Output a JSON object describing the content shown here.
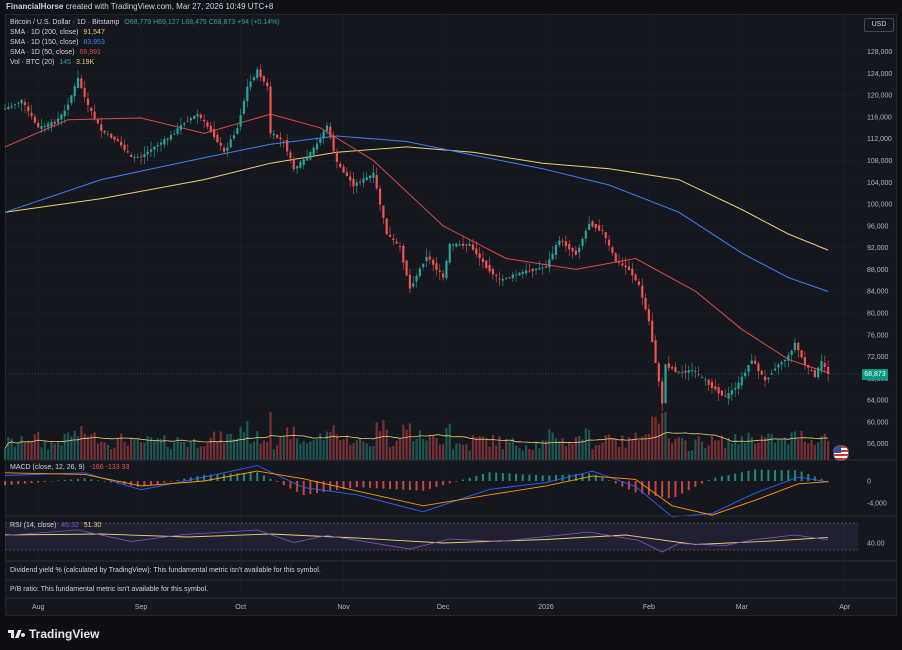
{
  "header": {
    "author": "FinancialHorse",
    "credit_text": "created with TradingView.com, Mar 27, 2026 10:49 UTC+8"
  },
  "legend": {
    "symbol": "Bitcoin / U.S. Dollar · 1D · Bitstamp",
    "ohlc": "O68,779  H69,127  L68,475  C68,873 +94 (+0.14%)",
    "sma200_label": "SMA · 1D (200, close)",
    "sma200_value": "91,547",
    "sma150_label": "SMA · 1D (150, close)",
    "sma150_value": "83,953",
    "sma50_label": "SMA · 1D (50, close)",
    "sma50_value": "68,991",
    "vol_label": "Vol · BTC (20)",
    "vol_value1": "145",
    "vol_value2": "3.19K",
    "macd_label": "MACD (close, 12, 26, 9)",
    "macd_values": "-166  -133  33",
    "rsi_label": "RSI (14, close)",
    "rsi_value1": "46.32",
    "rsi_value2": "51.30"
  },
  "currency_button": "USD",
  "last_price": "68,873",
  "fundamentals": {
    "dividend": "Dividend yield % (calculated by TradingView): This fundamental metric isn't available for this symbol.",
    "pb": "P/B ratio: This fundamental metric isn't available for this symbol."
  },
  "brand": "TradingView",
  "colors": {
    "up": "#26a69a",
    "down": "#ef5350",
    "sma200": "#e9d16f",
    "sma150": "#3f7ef5",
    "sma50": "#e0454b",
    "macd_line": "#2962ff",
    "signal_line": "#ff9800",
    "rsi_line": "#7e57c2",
    "rsi_ma": "#e9d16f",
    "price_tag": "#089981"
  },
  "chart_data": {
    "type": "candlestick",
    "price_axis": {
      "ylim": [
        53000,
        130500
      ],
      "ticks": [
        "128,000",
        "124,000",
        "120,000",
        "116,000",
        "112,000",
        "108,000",
        "104,000",
        "100,000",
        "96,000",
        "92,000",
        "88,000",
        "84,000",
        "80,000",
        "76,000",
        "72,000",
        "68,000",
        "64,000",
        "60,000",
        "56,000"
      ]
    },
    "time_axis": {
      "labels": [
        "Aug",
        "Sep",
        "Oct",
        "Nov",
        "Dec",
        "2026",
        "Feb",
        "Mar",
        "Apr"
      ],
      "label_dates": [
        "2025-08-01",
        "2025-09-01",
        "2025-10-01",
        "2025-11-01",
        "2025-12-01",
        "2026-01-01",
        "2026-02-01",
        "2026-03-01",
        "2026-04-01"
      ],
      "range": [
        "2025-07-22",
        "2026-04-05"
      ]
    },
    "price_path": [
      [
        "2025-07-22",
        117500
      ],
      [
        "2025-07-27",
        119000
      ],
      [
        "2025-08-01",
        114000
      ],
      [
        "2025-08-06",
        115000
      ],
      [
        "2025-08-09",
        117000
      ],
      [
        "2025-08-13",
        123000
      ],
      [
        "2025-08-16",
        118000
      ],
      [
        "2025-08-20",
        113500
      ],
      [
        "2025-08-25",
        111500
      ],
      [
        "2025-08-29",
        108500
      ],
      [
        "2025-09-01",
        108700
      ],
      [
        "2025-09-05",
        110500
      ],
      [
        "2025-09-10",
        112500
      ],
      [
        "2025-09-14",
        115000
      ],
      [
        "2025-09-18",
        116500
      ],
      [
        "2025-09-22",
        113500
      ],
      [
        "2025-09-26",
        109500
      ],
      [
        "2025-09-30",
        114000
      ],
      [
        "2025-10-03",
        121500
      ],
      [
        "2025-10-06",
        124500
      ],
      [
        "2025-10-09",
        121500
      ],
      [
        "2025-10-10",
        113000
      ],
      [
        "2025-10-14",
        111500
      ],
      [
        "2025-10-17",
        106500
      ],
      [
        "2025-10-21",
        108500
      ],
      [
        "2025-10-24",
        111000
      ],
      [
        "2025-10-27",
        114500
      ],
      [
        "2025-10-30",
        107500
      ],
      [
        "2025-11-04",
        103500
      ],
      [
        "2025-11-10",
        105500
      ],
      [
        "2025-11-14",
        94500
      ],
      [
        "2025-11-18",
        92000
      ],
      [
        "2025-11-21",
        84500
      ],
      [
        "2025-11-26",
        90500
      ],
      [
        "2025-12-01",
        86500
      ],
      [
        "2025-12-03",
        92500
      ],
      [
        "2025-12-09",
        92500
      ],
      [
        "2025-12-14",
        88500
      ],
      [
        "2025-12-18",
        86000
      ],
      [
        "2025-12-25",
        87500
      ],
      [
        "2026-01-01",
        88500
      ],
      [
        "2026-01-05",
        93500
      ],
      [
        "2026-01-10",
        90800
      ],
      [
        "2026-01-14",
        96500
      ],
      [
        "2026-01-18",
        95000
      ],
      [
        "2026-01-22",
        89500
      ],
      [
        "2026-01-26",
        88000
      ],
      [
        "2026-01-29",
        85000
      ],
      [
        "2026-02-01",
        78500
      ],
      [
        "2026-02-05",
        63500
      ],
      [
        "2026-02-06",
        70500
      ],
      [
        "2026-02-10",
        69000
      ],
      [
        "2026-02-14",
        69500
      ],
      [
        "2026-02-18",
        67500
      ],
      [
        "2026-02-24",
        64500
      ],
      [
        "2026-02-28",
        67000
      ],
      [
        "2026-03-04",
        71500
      ],
      [
        "2026-03-08",
        67500
      ],
      [
        "2026-03-11",
        70000
      ],
      [
        "2026-03-15",
        72000
      ],
      [
        "2026-03-17",
        74500
      ],
      [
        "2026-03-20",
        70500
      ],
      [
        "2026-03-23",
        68500
      ],
      [
        "2026-03-25",
        71000
      ],
      [
        "2026-03-27",
        68873
      ]
    ],
    "sma50": [
      [
        "2025-07-22",
        110500
      ],
      [
        "2025-08-10",
        115500
      ],
      [
        "2025-09-01",
        115800
      ],
      [
        "2025-09-20",
        113000
      ],
      [
        "2025-10-10",
        116500
      ],
      [
        "2025-10-25",
        114000
      ],
      [
        "2025-11-10",
        108000
      ],
      [
        "2025-12-01",
        96000
      ],
      [
        "2025-12-20",
        90000
      ],
      [
        "2026-01-10",
        88000
      ],
      [
        "2026-01-28",
        90000
      ],
      [
        "2026-02-15",
        84000
      ],
      [
        "2026-03-01",
        77000
      ],
      [
        "2026-03-15",
        71500
      ],
      [
        "2026-03-27",
        68991
      ]
    ],
    "sma150": [
      [
        "2025-07-22",
        98500
      ],
      [
        "2025-08-20",
        104500
      ],
      [
        "2025-09-20",
        108500
      ],
      [
        "2025-10-10",
        111000
      ],
      [
        "2025-10-30",
        112500
      ],
      [
        "2025-11-20",
        111500
      ],
      [
        "2025-12-10",
        109000
      ],
      [
        "2025-12-31",
        106500
      ],
      [
        "2026-01-20",
        103500
      ],
      [
        "2026-02-10",
        98500
      ],
      [
        "2026-03-01",
        91000
      ],
      [
        "2026-03-15",
        86500
      ],
      [
        "2026-03-27",
        83953
      ]
    ],
    "sma200": [
      [
        "2025-07-22",
        98500
      ],
      [
        "2025-08-20",
        101000
      ],
      [
        "2025-09-20",
        104500
      ],
      [
        "2025-10-10",
        107500
      ],
      [
        "2025-10-30",
        109500
      ],
      [
        "2025-11-20",
        110500
      ],
      [
        "2025-12-10",
        109500
      ],
      [
        "2025-12-31",
        107500
      ],
      [
        "2026-01-20",
        106500
      ],
      [
        "2026-02-10",
        104500
      ],
      [
        "2026-03-01",
        99000
      ],
      [
        "2026-03-15",
        94500
      ],
      [
        "2026-03-27",
        91547
      ]
    ],
    "macd_axis": {
      "ticks": [
        "0",
        "-4,000"
      ]
    },
    "macd_path": [
      [
        "2025-07-22",
        1000
      ],
      [
        "2025-08-15",
        1500
      ],
      [
        "2025-09-01",
        -1600
      ],
      [
        "2025-09-20",
        700
      ],
      [
        "2025-10-06",
        2800
      ],
      [
        "2025-10-20",
        -1200
      ],
      [
        "2025-11-05",
        -2500
      ],
      [
        "2025-11-25",
        -5600
      ],
      [
        "2025-12-15",
        -1500
      ],
      [
        "2026-01-01",
        -300
      ],
      [
        "2026-01-15",
        1800
      ],
      [
        "2026-01-28",
        -1000
      ],
      [
        "2026-02-08",
        -6500
      ],
      [
        "2026-02-20",
        -5900
      ],
      [
        "2026-03-05",
        -2200
      ],
      [
        "2026-03-18",
        700
      ],
      [
        "2026-03-27",
        -166
      ]
    ],
    "signal_path": [
      [
        "2025-07-22",
        1500
      ],
      [
        "2025-08-15",
        1200
      ],
      [
        "2025-09-01",
        -900
      ],
      [
        "2025-09-20",
        0
      ],
      [
        "2025-10-06",
        1800
      ],
      [
        "2025-10-20",
        400
      ],
      [
        "2025-11-05",
        -1800
      ],
      [
        "2025-11-25",
        -4500
      ],
      [
        "2025-12-15",
        -2500
      ],
      [
        "2026-01-01",
        -900
      ],
      [
        "2026-01-15",
        900
      ],
      [
        "2026-01-28",
        300
      ],
      [
        "2026-02-08",
        -4500
      ],
      [
        "2026-02-20",
        -6200
      ],
      [
        "2026-03-05",
        -3500
      ],
      [
        "2026-03-18",
        -500
      ],
      [
        "2026-03-27",
        -133
      ]
    ],
    "rsi_axis": {
      "ticks": [
        "40.00"
      ]
    },
    "rsi_path": [
      [
        "2025-07-22",
        55
      ],
      [
        "2025-08-13",
        66
      ],
      [
        "2025-08-29",
        43
      ],
      [
        "2025-09-14",
        57
      ],
      [
        "2025-10-06",
        66
      ],
      [
        "2025-10-17",
        41
      ],
      [
        "2025-10-27",
        55
      ],
      [
        "2025-11-21",
        28
      ],
      [
        "2025-12-03",
        48
      ],
      [
        "2025-12-18",
        43
      ],
      [
        "2026-01-14",
        62
      ],
      [
        "2026-01-29",
        45
      ],
      [
        "2026-02-05",
        22
      ],
      [
        "2026-02-10",
        39
      ],
      [
        "2026-02-24",
        35
      ],
      [
        "2026-03-04",
        46
      ],
      [
        "2026-03-17",
        56
      ],
      [
        "2026-03-27",
        46.32
      ]
    ],
    "rsi_ma_path": [
      [
        "2025-07-22",
        56
      ],
      [
        "2025-08-20",
        58
      ],
      [
        "2025-09-15",
        52
      ],
      [
        "2025-10-10",
        58
      ],
      [
        "2025-11-05",
        50
      ],
      [
        "2025-12-01",
        40
      ],
      [
        "2026-01-01",
        47
      ],
      [
        "2026-01-25",
        56
      ],
      [
        "2026-02-15",
        37
      ],
      [
        "2026-03-10",
        44
      ],
      [
        "2026-03-27",
        51.3
      ]
    ]
  }
}
